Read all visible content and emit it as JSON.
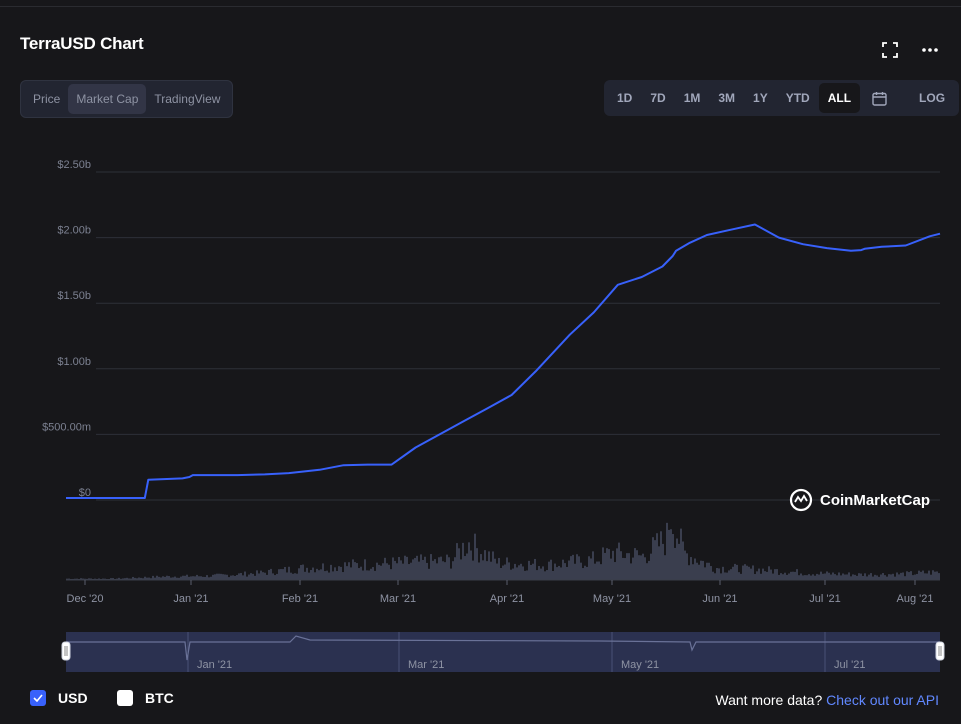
{
  "header": {
    "title": "TerraUSD Chart",
    "fullscreen_icon": "fullscreen-icon",
    "more_icon": "more-horizontal-icon"
  },
  "chart_tabs": [
    {
      "label": "Price",
      "active": false
    },
    {
      "label": "Market Cap",
      "active": true
    },
    {
      "label": "TradingView",
      "active": false
    }
  ],
  "range_buttons": [
    {
      "label": "1D",
      "active": false
    },
    {
      "label": "7D",
      "active": false
    },
    {
      "label": "1M",
      "active": false
    },
    {
      "label": "3M",
      "active": false
    },
    {
      "label": "1Y",
      "active": false
    },
    {
      "label": "YTD",
      "active": false
    },
    {
      "label": "ALL",
      "active": true
    },
    {
      "label": "",
      "icon": "calendar-icon",
      "active": false
    },
    {
      "label": "LOG",
      "active": false
    }
  ],
  "watermark": "CoinMarketCap",
  "chart_data": {
    "type": "line",
    "title": "",
    "xlabel": "",
    "ylabel": "",
    "y_ticks": [
      {
        "value": 0,
        "label": "$0"
      },
      {
        "value": 500,
        "label": "$500.00m"
      },
      {
        "value": 1000,
        "label": "$1.00b"
      },
      {
        "value": 1500,
        "label": "$1.50b"
      },
      {
        "value": 2000,
        "label": "$2.00b"
      },
      {
        "value": 2500,
        "label": "$2.50b"
      }
    ],
    "ylim": [
      0,
      2500
    ],
    "x_ticks": [
      "Dec '20",
      "Jan '21",
      "Feb '21",
      "Mar '21",
      "Apr '21",
      "May '21",
      "Jun '21",
      "Jul '21",
      "Aug '21"
    ],
    "navigator_ticks": [
      "Jan '21",
      "Mar '21",
      "May '21",
      "Jul '21"
    ],
    "series": [
      {
        "color": "#3861fb",
        "x": [
          "2020-11-25",
          "2020-12-18",
          "2020-12-19",
          "2020-12-29",
          "2020-12-31",
          "2021-01-01",
          "2021-01-14",
          "2021-01-22",
          "2021-01-29",
          "2021-02-07",
          "2021-02-14",
          "2021-02-21",
          "2021-02-28",
          "2021-03-07",
          "2021-03-14",
          "2021-03-21",
          "2021-03-28",
          "2021-04-04",
          "2021-04-11",
          "2021-04-21",
          "2021-04-28",
          "2021-05-05",
          "2021-05-12",
          "2021-05-18",
          "2021-05-21",
          "2021-05-22",
          "2021-05-26",
          "2021-05-31",
          "2021-06-07",
          "2021-06-14",
          "2021-06-21",
          "2021-06-28",
          "2021-07-05",
          "2021-07-12",
          "2021-07-15",
          "2021-07-16",
          "2021-07-21",
          "2021-07-28",
          "2021-08-04",
          "2021-08-07"
        ],
        "values": [
          15,
          15,
          155,
          165,
          175,
          190,
          190,
          195,
          205,
          230,
          265,
          270,
          270,
          400,
          500,
          600,
          700,
          800,
          980,
          1260,
          1430,
          1640,
          1700,
          1780,
          1860,
          1900,
          1960,
          2020,
          2060,
          2100,
          2000,
          1950,
          1920,
          1900,
          1905,
          1915,
          1930,
          1940,
          2010,
          2030
        ]
      }
    ],
    "volume": {
      "color": "#3a3e4e",
      "x": [
        "2020-11-25",
        "2020-12-09",
        "2020-12-23",
        "2021-01-06",
        "2021-01-20",
        "2021-02-03",
        "2021-02-17",
        "2021-03-03",
        "2021-03-17",
        "2021-03-22",
        "2021-03-31",
        "2021-04-14",
        "2021-04-28",
        "2021-05-03",
        "2021-05-12",
        "2021-05-19",
        "2021-05-20",
        "2021-05-24",
        "2021-06-02",
        "2021-06-16",
        "2021-06-30",
        "2021-07-14",
        "2021-07-28",
        "2021-08-07"
      ],
      "values": [
        2,
        2,
        5,
        6,
        10,
        18,
        22,
        25,
        28,
        55,
        25,
        22,
        30,
        40,
        35,
        60,
        100,
        40,
        18,
        15,
        10,
        8,
        9,
        12
      ]
    }
  },
  "legend": [
    {
      "label": "USD",
      "checked": true,
      "color": "#3861fb"
    },
    {
      "label": "BTC",
      "checked": false,
      "color": "#ffffff"
    }
  ],
  "footer": {
    "prefix": "Want more data?",
    "link": "Check out our API"
  }
}
